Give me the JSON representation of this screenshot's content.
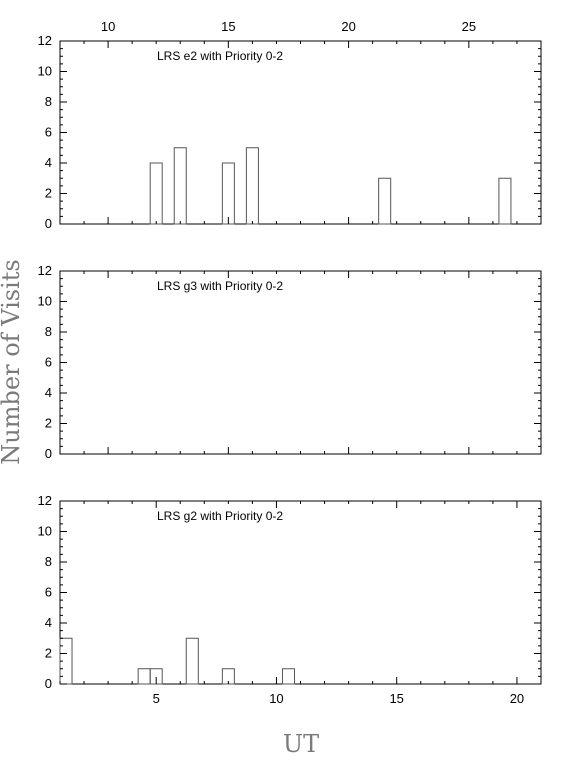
{
  "ylabel": "Number of Visits",
  "xlabel": "UT",
  "chart_data": [
    {
      "type": "bar",
      "title": "LRS e2 with Priority 0-2",
      "xlim": [
        8,
        28
      ],
      "ylim": [
        0,
        12
      ],
      "xticks": [
        10,
        15,
        20,
        25
      ],
      "xtick_side": "top",
      "yticks": [
        0,
        2,
        4,
        6,
        8,
        10,
        12
      ],
      "bin_width": 0.5,
      "bins": [
        {
          "x": 11.75,
          "value": 4
        },
        {
          "x": 12.75,
          "value": 5
        },
        {
          "x": 14.75,
          "value": 4
        },
        {
          "x": 15.75,
          "value": 5
        },
        {
          "x": 21.25,
          "value": 3
        },
        {
          "x": 26.25,
          "value": 3
        }
      ]
    },
    {
      "type": "bar",
      "title": "LRS g3 with Priority 0-2",
      "xlim": [
        8,
        28
      ],
      "ylim": [
        0,
        12
      ],
      "xticks": [],
      "yticks": [
        0,
        2,
        4,
        6,
        8,
        10,
        12
      ],
      "bin_width": 0.5,
      "bins": []
    },
    {
      "type": "bar",
      "title": "LRS g2 with Priority 0-2",
      "xlim": [
        1,
        21
      ],
      "ylim": [
        0,
        12
      ],
      "xticks": [
        5,
        10,
        15,
        20
      ],
      "xtick_side": "bottom",
      "yticks": [
        0,
        2,
        4,
        6,
        8,
        10,
        12
      ],
      "bin_width": 0.5,
      "bins": [
        {
          "x": 1.0,
          "value": 3
        },
        {
          "x": 4.25,
          "value": 1
        },
        {
          "x": 4.75,
          "value": 1
        },
        {
          "x": 6.25,
          "value": 3
        },
        {
          "x": 7.75,
          "value": 1
        },
        {
          "x": 10.25,
          "value": 1
        }
      ]
    }
  ]
}
